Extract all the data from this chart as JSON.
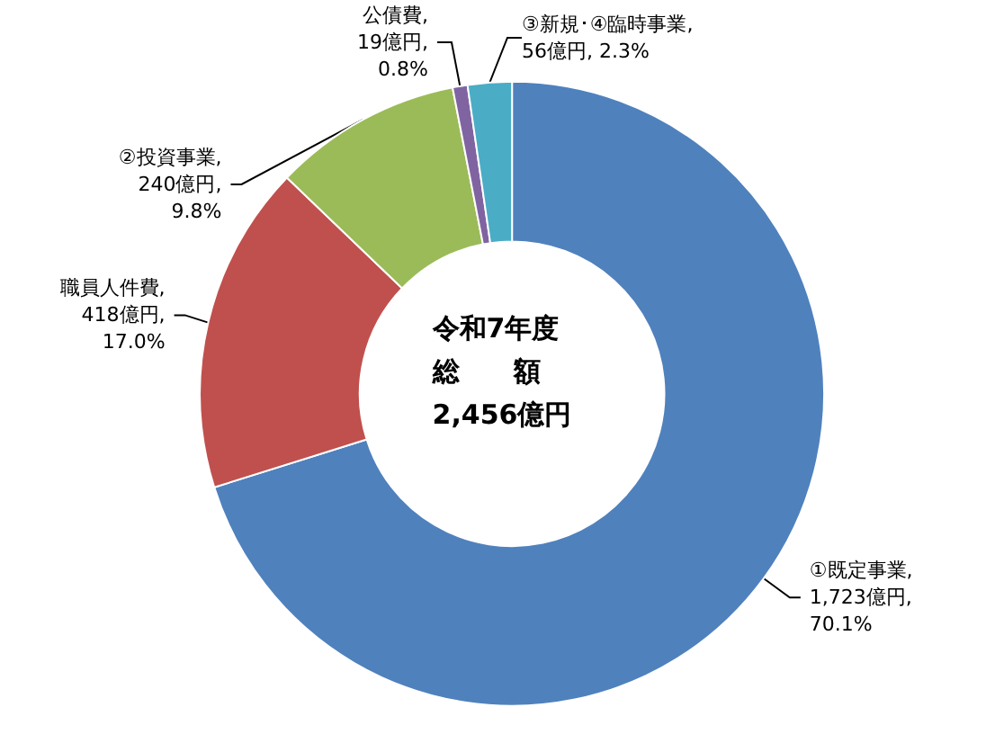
{
  "chart_data": {
    "type": "donut",
    "categories": [
      "①既定事業",
      "職員人件費",
      "②投資事業",
      "公債費",
      "③新規･④臨時事業"
    ],
    "values": [
      1723,
      418,
      240,
      19,
      56
    ],
    "colors": [
      "#4f81bd",
      "#c0504d",
      "#9bbb59",
      "#8064a2",
      "#4bacc6"
    ],
    "value_labels": [
      ",\n1,723億円,\n70.1%",
      ",\n418億円,\n17.0%",
      ",\n240億円,\n9.8%",
      ",\n19億円,\n0.8%",
      ",\n56億円, 2.3%"
    ],
    "annotations": [
      "令和7年度",
      "総　　額",
      "2,456億円"
    ],
    "legend": false
  }
}
